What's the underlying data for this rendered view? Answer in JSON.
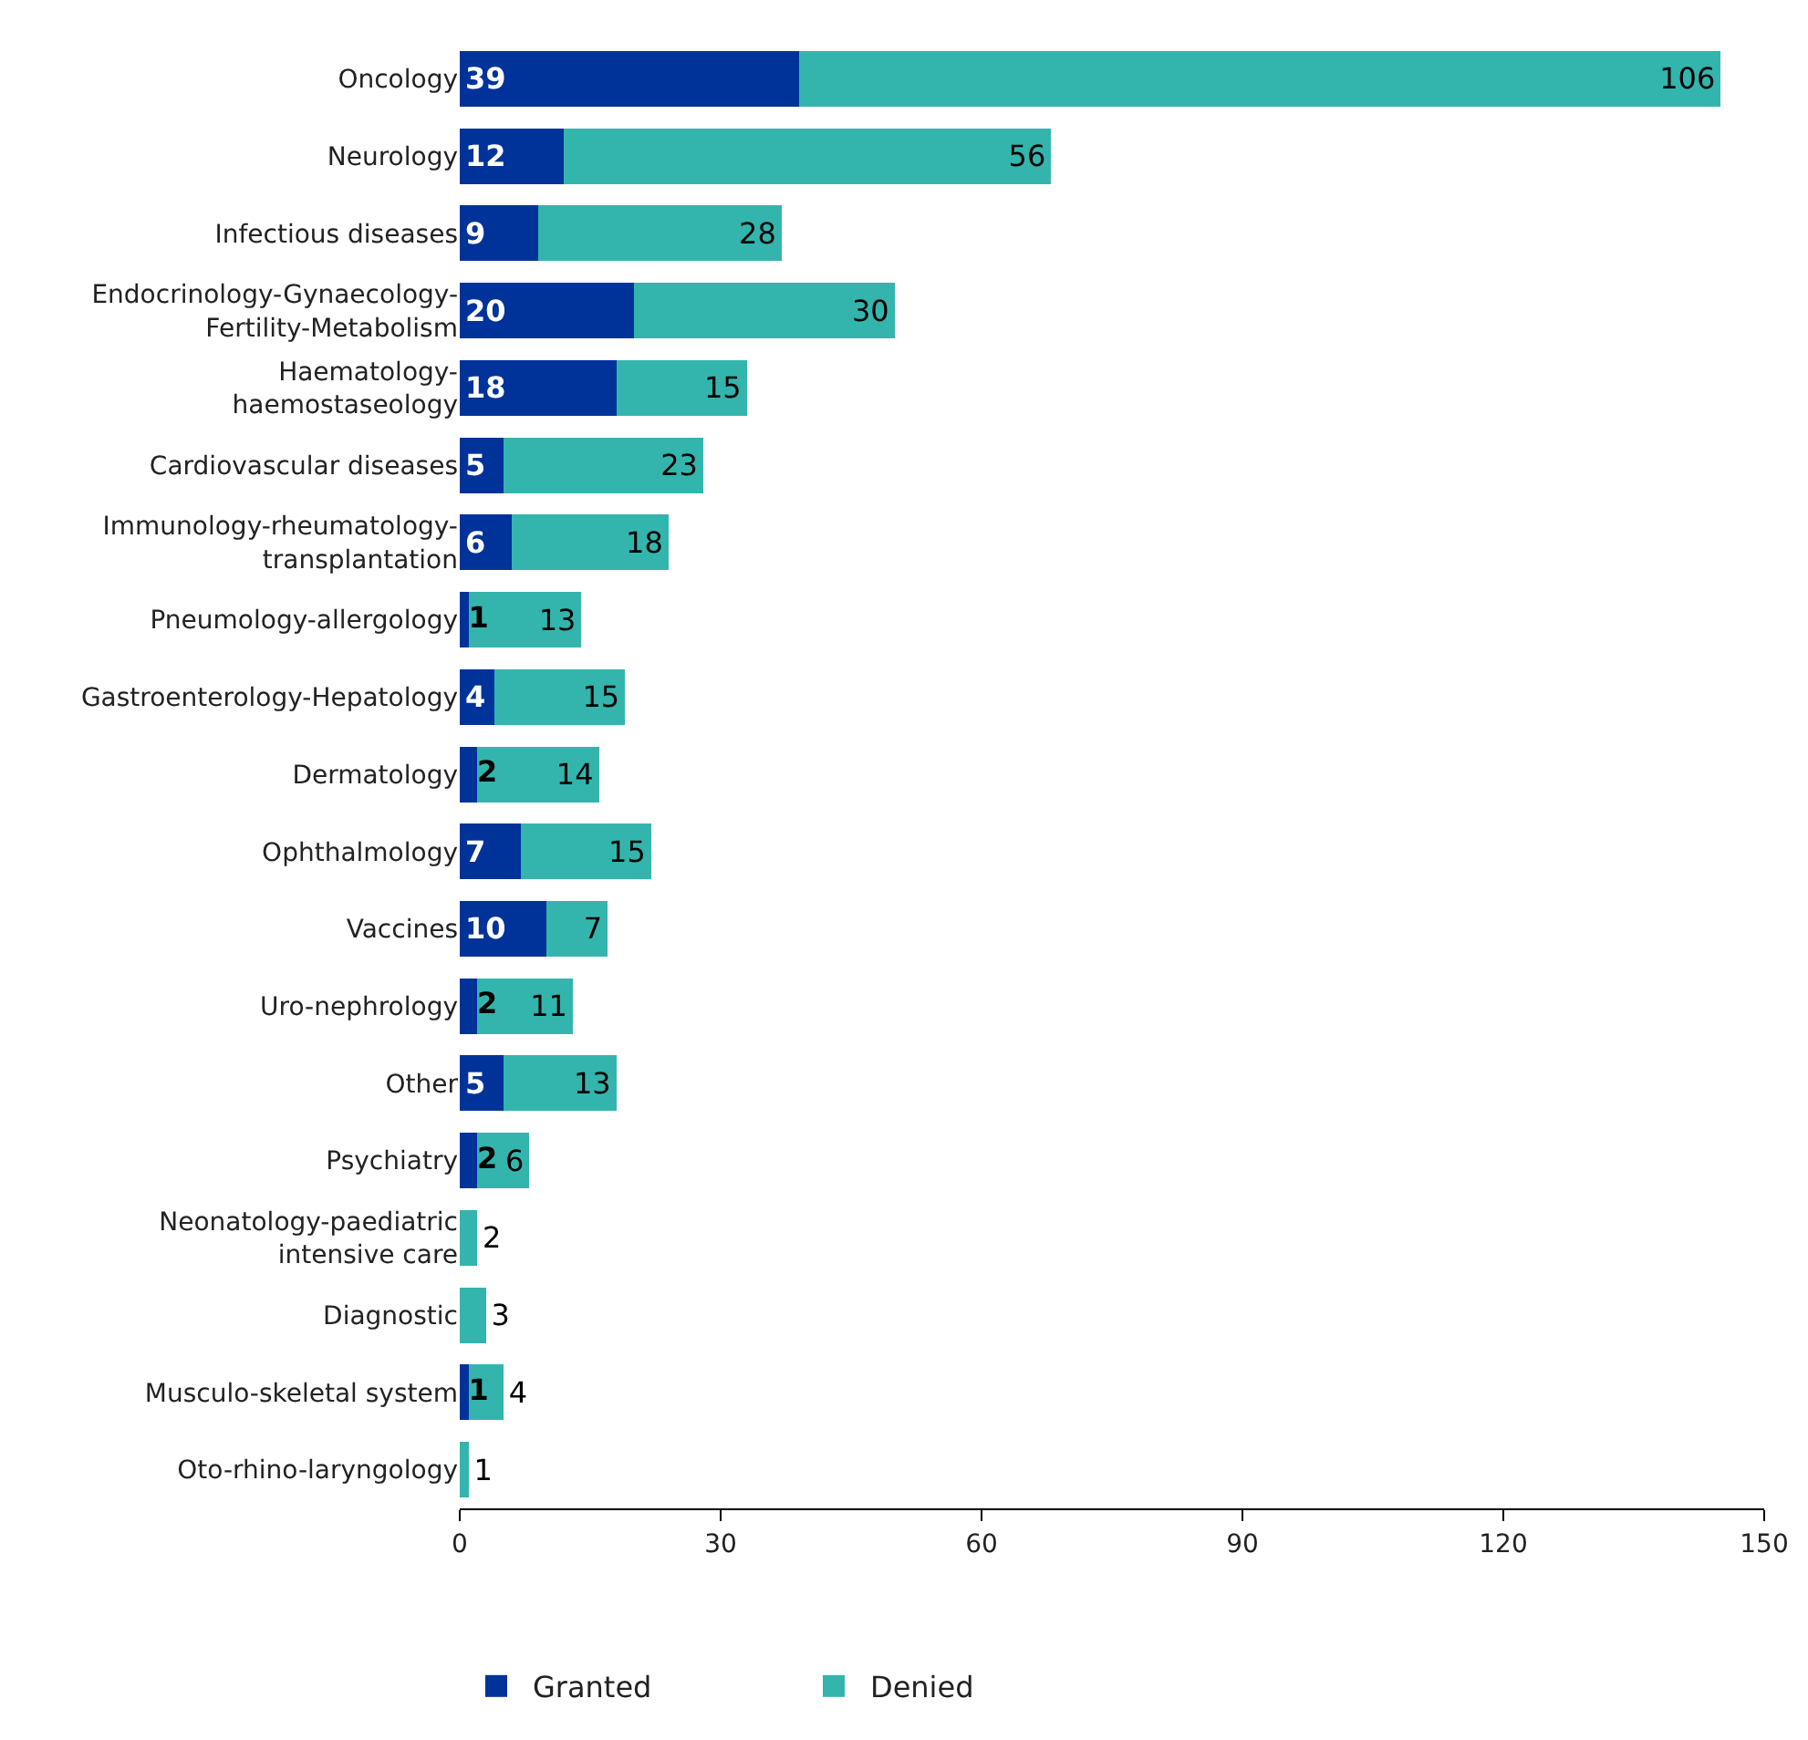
{
  "chart_data": {
    "type": "bar",
    "orientation": "horizontal",
    "stacked": true,
    "categories": [
      "Oncology",
      "Neurology",
      "Infectious diseases",
      "Endocrinology-Gynaecology-\nFertility-Metabolism",
      "Haematology-\nhaemostaseology",
      "Cardiovascular diseases",
      "Immunology-rheumatology-\ntransplantation",
      "Pneumology-allergology",
      "Gastroenterology-Hepatology",
      "Dermatology",
      "Ophthalmology",
      "Vaccines",
      "Uro-nephrology",
      "Other",
      "Psychiatry",
      "Neonatology-paediatric\nintensive care",
      "Diagnostic",
      "Musculo-skeletal system",
      "Oto-rhino-laryngology"
    ],
    "series": [
      {
        "name": "Granted",
        "color": "#00339a",
        "values": [
          39,
          12,
          9,
          20,
          18,
          5,
          6,
          1,
          4,
          2,
          7,
          10,
          2,
          5,
          2,
          0,
          0,
          1,
          0
        ],
        "value_labels": [
          "39",
          "12",
          "9",
          "20",
          "18",
          "5",
          "6",
          "1",
          "4",
          "2",
          "7",
          "10",
          "2",
          "5",
          "2",
          null,
          null,
          "1",
          null
        ]
      },
      {
        "name": "Denied",
        "color": "#33b5ad",
        "values": [
          106,
          56,
          28,
          30,
          15,
          23,
          18,
          13,
          15,
          14,
          15,
          7,
          11,
          13,
          6,
          2,
          3,
          4,
          1
        ],
        "value_labels": [
          "106",
          "56",
          "28",
          "30",
          "15",
          "23",
          "18",
          "13",
          "15",
          "14",
          "15",
          "7",
          "11",
          "13",
          "6",
          "2",
          "3",
          "4",
          "1"
        ]
      }
    ],
    "xlim": [
      0,
      150
    ],
    "xticks": [
      0,
      30,
      60,
      90,
      120,
      150
    ],
    "legend": "bottom left"
  }
}
